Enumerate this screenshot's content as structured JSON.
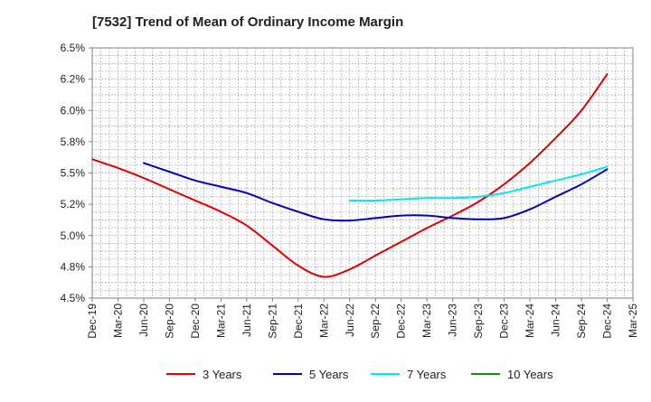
{
  "chart_data": {
    "type": "line",
    "title": "[7532]  Trend of Mean of Ordinary Income Margin",
    "xlabel": "",
    "ylabel": "",
    "x": [
      "Dec-19",
      "Mar-20",
      "Jun-20",
      "Sep-20",
      "Dec-20",
      "Mar-21",
      "Jun-21",
      "Sep-21",
      "Dec-21",
      "Mar-22",
      "Jun-22",
      "Sep-22",
      "Dec-22",
      "Mar-23",
      "Jun-23",
      "Sep-23",
      "Dec-23",
      "Mar-24",
      "Jun-24",
      "Sep-24",
      "Dec-24",
      "Mar-25"
    ],
    "y_ticks": [
      "4.5%",
      "4.8%",
      "5.0%",
      "5.2%",
      "5.5%",
      "5.8%",
      "6.0%",
      "6.2%",
      "6.5%"
    ],
    "ylim": [
      4.5,
      6.5
    ],
    "grid": true,
    "legend_position": "bottom",
    "series": [
      {
        "name": "3 Years",
        "color": "#e00000",
        "values": [
          5.61,
          5.54,
          5.46,
          5.37,
          5.28,
          5.19,
          5.08,
          4.92,
          4.76,
          4.67,
          4.73,
          4.84,
          4.95,
          5.06,
          5.16,
          5.27,
          5.41,
          5.58,
          5.78,
          6.0,
          6.29,
          null
        ]
      },
      {
        "name": "5 Years",
        "color": "#0000c0",
        "values": [
          null,
          null,
          5.58,
          5.51,
          5.44,
          5.39,
          5.34,
          5.26,
          5.19,
          5.13,
          5.12,
          5.14,
          5.16,
          5.16,
          5.14,
          5.13,
          5.14,
          5.21,
          5.31,
          5.41,
          5.53,
          null
        ]
      },
      {
        "name": "7 Years",
        "color": "#00e8f0",
        "values": [
          null,
          null,
          null,
          null,
          null,
          null,
          null,
          null,
          null,
          null,
          5.28,
          5.28,
          5.29,
          5.3,
          5.3,
          5.31,
          5.34,
          5.39,
          5.44,
          5.49,
          5.55,
          null
        ]
      },
      {
        "name": "10 Years",
        "color": "#1a8a1a",
        "values": [
          null,
          null,
          null,
          null,
          null,
          null,
          null,
          null,
          null,
          null,
          null,
          null,
          null,
          null,
          null,
          null,
          null,
          null,
          null,
          null,
          null,
          null
        ]
      }
    ]
  }
}
